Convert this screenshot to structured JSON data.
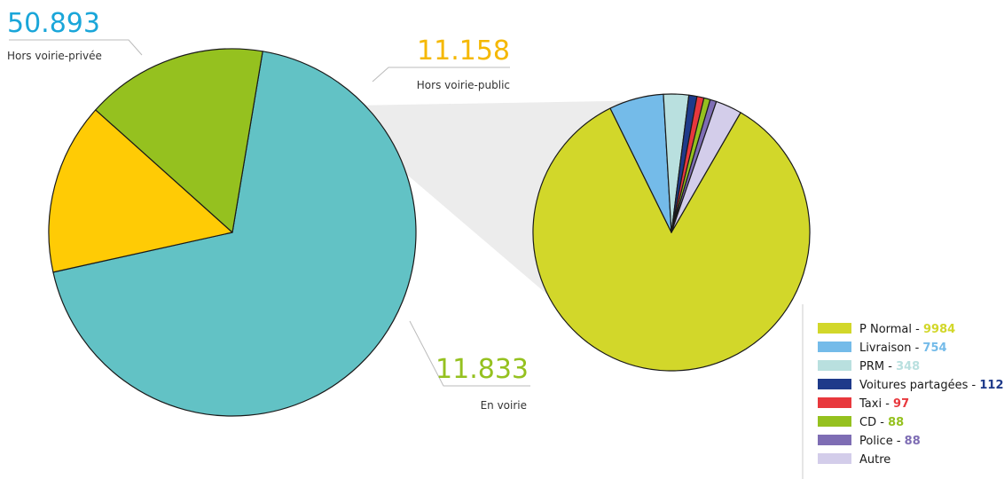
{
  "chart_data": [
    {
      "type": "pie",
      "name": "main",
      "series": [
        {
          "label": "Hors voirie-privée",
          "value": 50893,
          "display": "50.893",
          "color": "#62c2c5"
        },
        {
          "label": "Hors voirie-public",
          "value": 11158,
          "display": "11.158",
          "color": "#ffcb05"
        },
        {
          "label": "En voirie",
          "value": 11833,
          "display": "11.833",
          "color": "#95c11f"
        }
      ]
    },
    {
      "type": "pie",
      "name": "breakdown",
      "series": [
        {
          "label": "P Normal",
          "value": 9984,
          "display": "9984",
          "color": "#d2d72a"
        },
        {
          "label": "Livraison",
          "value": 754,
          "display": "754",
          "color": "#74bbe9"
        },
        {
          "label": "PRM",
          "value": 348,
          "display": "348",
          "color": "#b9e0df"
        },
        {
          "label": "Voitures partagées",
          "value": 112,
          "display": "112",
          "color": "#1e3a8a"
        },
        {
          "label": "Taxi",
          "value": 97,
          "display": "97",
          "color": "#e8383d"
        },
        {
          "label": "CD",
          "value": 88,
          "display": "88",
          "color": "#95c11f"
        },
        {
          "label": "Police",
          "value": 88,
          "display": "88",
          "color": "#7e6db4"
        },
        {
          "label": "Autre",
          "value": 362,
          "display": "",
          "color": "#d3cdea"
        }
      ]
    }
  ]
}
